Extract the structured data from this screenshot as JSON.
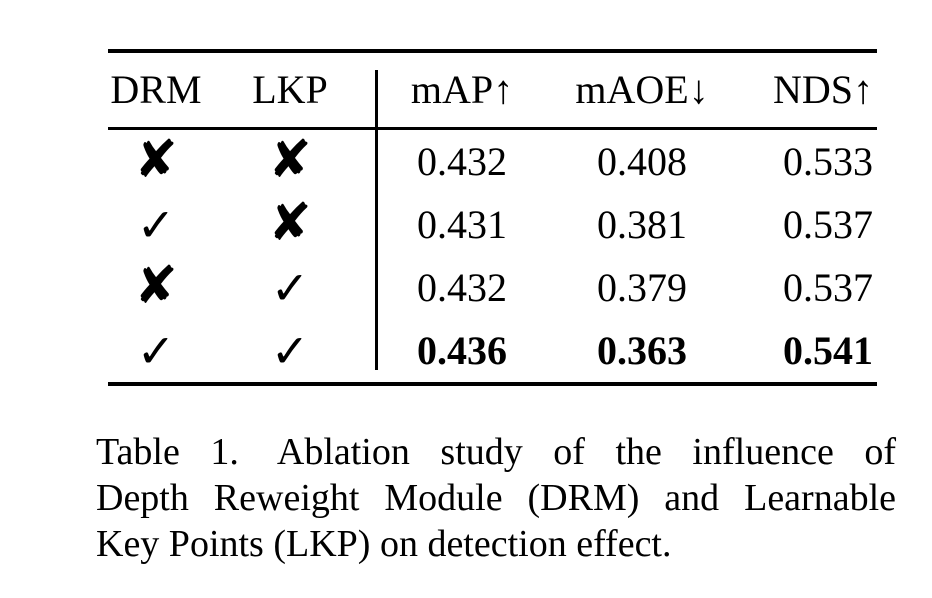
{
  "colors": {
    "text": "#000000",
    "background": "#ffffff"
  },
  "table": {
    "headers": [
      "DRM",
      "LKP",
      "mAP↑",
      "mAOE↓",
      "NDS↑"
    ],
    "rows": [
      {
        "drm_mark": "✘",
        "lkp_mark": "✘",
        "map": "0.432",
        "maoe": "0.408",
        "nds": "0.533"
      },
      {
        "drm_mark": "✓",
        "lkp_mark": "✘",
        "map": "0.431",
        "maoe": "0.381",
        "nds": "0.537"
      },
      {
        "drm_mark": "✘",
        "lkp_mark": "✓",
        "map": "0.432",
        "maoe": "0.379",
        "nds": "0.537"
      },
      {
        "drm_mark": "✓",
        "lkp_mark": "✓",
        "map": "0.436",
        "maoe": "0.363",
        "nds": "0.541"
      }
    ],
    "icons": {
      "cross": "heavy-ballot-x",
      "check": "check-mark"
    }
  },
  "caption": {
    "label": "Table 1.",
    "lines": [
      "Table 1.  Ablation study of the influence of",
      "Depth Reweight Module (DRM) and Learnable",
      "Key Points (LKP) on detection effect."
    ]
  }
}
